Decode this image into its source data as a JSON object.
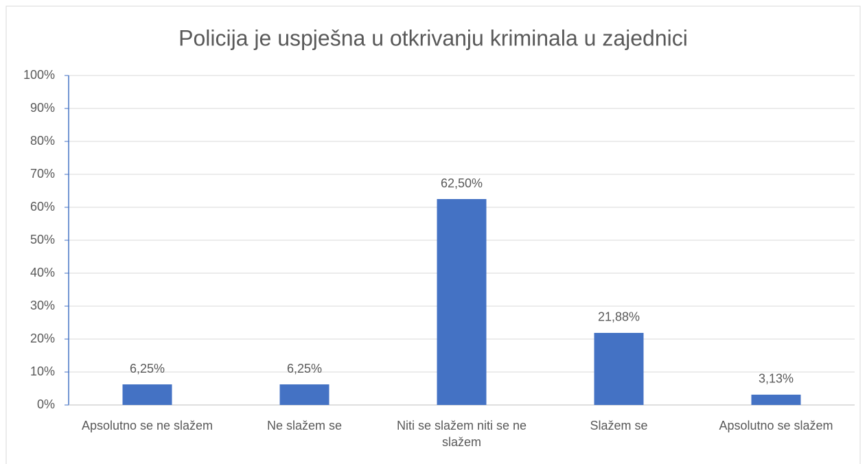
{
  "chart_data": {
    "type": "bar",
    "title": "Policija je uspješna u otkrivanju kriminala u zajednici",
    "categories": [
      "Apsolutno se ne slažem",
      "Ne slažem se",
      "Niti se slažem niti se ne slažem",
      "Slažem se",
      "Apsolutno se slažem"
    ],
    "values": [
      6.25,
      6.25,
      62.5,
      21.88,
      3.13
    ],
    "value_labels": [
      "6,25%",
      "6,25%",
      "62,50%",
      "21,88%",
      "3,13%"
    ],
    "color": "#4472c4",
    "ylim": [
      0,
      100
    ],
    "yticks": [
      {
        "value": 0,
        "label": "0%"
      },
      {
        "value": 10,
        "label": "10%"
      },
      {
        "value": 20,
        "label": "20%"
      },
      {
        "value": 30,
        "label": "30%"
      },
      {
        "value": 40,
        "label": "40%"
      },
      {
        "value": 50,
        "label": "50%"
      },
      {
        "value": 60,
        "label": "60%"
      },
      {
        "value": 70,
        "label": "70%"
      },
      {
        "value": 80,
        "label": "80%"
      },
      {
        "value": 90,
        "label": "90%"
      },
      {
        "value": 100,
        "label": "100%"
      }
    ],
    "grid": true
  }
}
